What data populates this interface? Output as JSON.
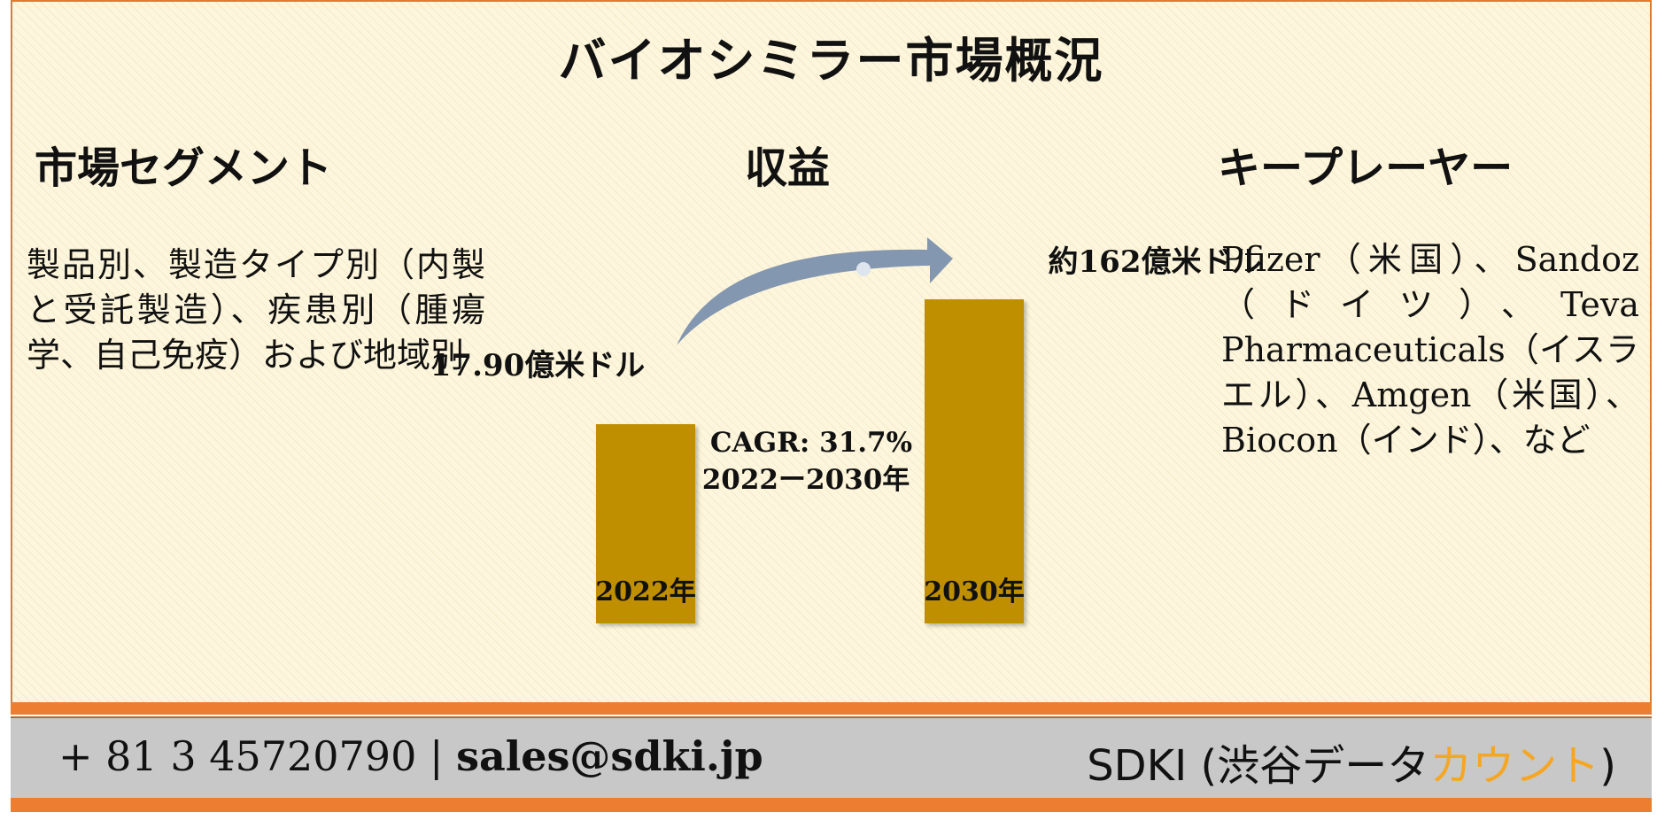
{
  "title": "バイオシミラー市場概況",
  "columns": {
    "segments": {
      "heading": "市場セグメント",
      "text": "製品別、製造タイプ別（内製と受託製造）、疾患別（腫瘍学、自己免疫）および地域別"
    },
    "revenue": {
      "heading": "収益"
    },
    "players": {
      "heading": "キープレーヤー",
      "text": "Pfizer（米国）、Sandoz（ドイツ）、Teva Pharmaceuticals（イスラエル）、Amgen（米国）、Biocon（インド）、など"
    }
  },
  "chart_data": {
    "type": "bar",
    "categories": [
      "2022年",
      "2030年"
    ],
    "values": [
      17.9,
      162
    ],
    "value_labels": [
      "17.90億米ドル",
      "約162億米ドル"
    ],
    "annotation": [
      "CAGR: 31.7%",
      "2022ー2030年"
    ],
    "colors": {
      "bar": "#bf8f00",
      "arrow": "#8497b0"
    }
  },
  "footer": {
    "phone": "+ 81 3 45720790",
    "separator": "|",
    "email": "sales@sdki.jp",
    "brand_main": "SDKI (渋谷データ",
    "brand_accent": "カウント",
    "brand_end": ")"
  }
}
